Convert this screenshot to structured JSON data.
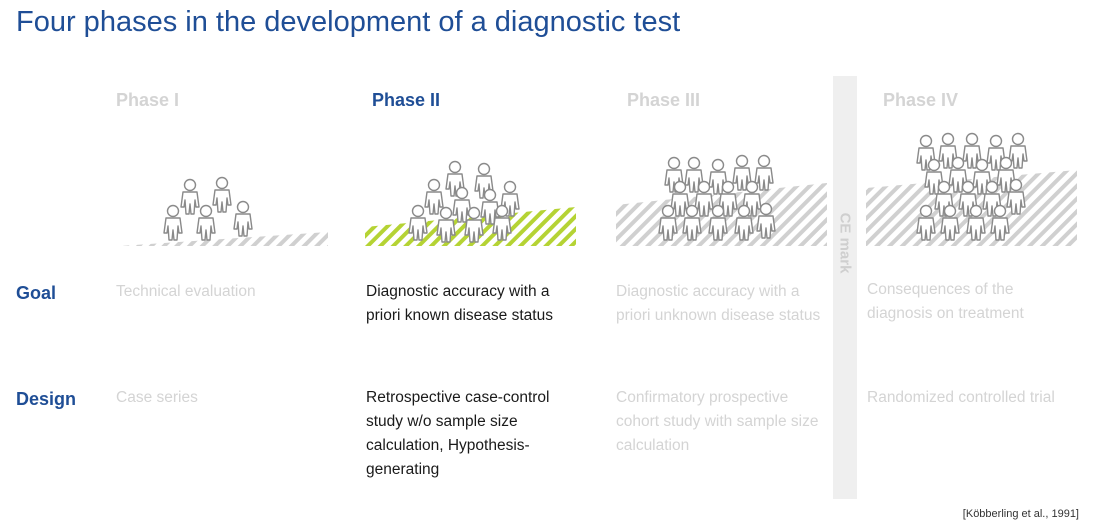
{
  "title": "Four phases in the development of a diagnostic test",
  "row_labels": {
    "goal": "Goal",
    "design": "Design"
  },
  "phases": [
    {
      "label": "Phase I",
      "active": false,
      "goal": "Technical evaluation",
      "design": "Case series"
    },
    {
      "label": "Phase II",
      "active": true,
      "goal": "Diagnostic accuracy with a priori known disease status",
      "design": "Retrospective case-control study w/o sample size calculation, Hypothesis-generating"
    },
    {
      "label": "Phase III",
      "active": false,
      "goal": "Diagnostic accuracy with a priori unknown disease status",
      "design": "Confirmatory prospective cohort study with sample size calculation"
    },
    {
      "label": "Phase IV",
      "active": false,
      "goal": "Consequences of the diagnosis on treatment",
      "design": "Randomized controlled trial"
    }
  ],
  "ce_mark": "CE mark",
  "citation": "[Köbberling et al., 1991]",
  "colors": {
    "accent": "#1f4e96",
    "muted_text": "#d4d4d4",
    "active_hatch": "#b5d334",
    "muted_hatch": "#d0d0d0",
    "people_stroke": "#8a8a8a"
  }
}
